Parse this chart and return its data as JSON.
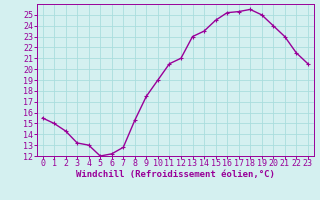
{
  "x": [
    0,
    1,
    2,
    3,
    4,
    5,
    6,
    7,
    8,
    9,
    10,
    11,
    12,
    13,
    14,
    15,
    16,
    17,
    18,
    19,
    20,
    21,
    22,
    23
  ],
  "y": [
    15.5,
    15.0,
    14.3,
    13.2,
    13.0,
    12.0,
    12.2,
    12.8,
    15.3,
    17.5,
    19.0,
    20.5,
    21.0,
    23.0,
    23.5,
    24.5,
    25.2,
    25.3,
    25.5,
    25.0,
    24.0,
    23.0,
    21.5,
    20.5
  ],
  "line_color": "#990099",
  "marker": "+",
  "bg_color": "#d4f0f0",
  "grid_color": "#aadddd",
  "xlabel": "Windchill (Refroidissement éolien,°C)",
  "ylim": [
    12,
    26
  ],
  "xlim": [
    -0.5,
    23.5
  ],
  "yticks": [
    12,
    13,
    14,
    15,
    16,
    17,
    18,
    19,
    20,
    21,
    22,
    23,
    24,
    25
  ],
  "xticks": [
    0,
    1,
    2,
    3,
    4,
    5,
    6,
    7,
    8,
    9,
    10,
    11,
    12,
    13,
    14,
    15,
    16,
    17,
    18,
    19,
    20,
    21,
    22,
    23
  ],
  "tick_color": "#990099",
  "label_color": "#990099",
  "font_size": 6,
  "marker_size": 3,
  "line_width": 1.0,
  "xlabel_fontsize": 6.5
}
